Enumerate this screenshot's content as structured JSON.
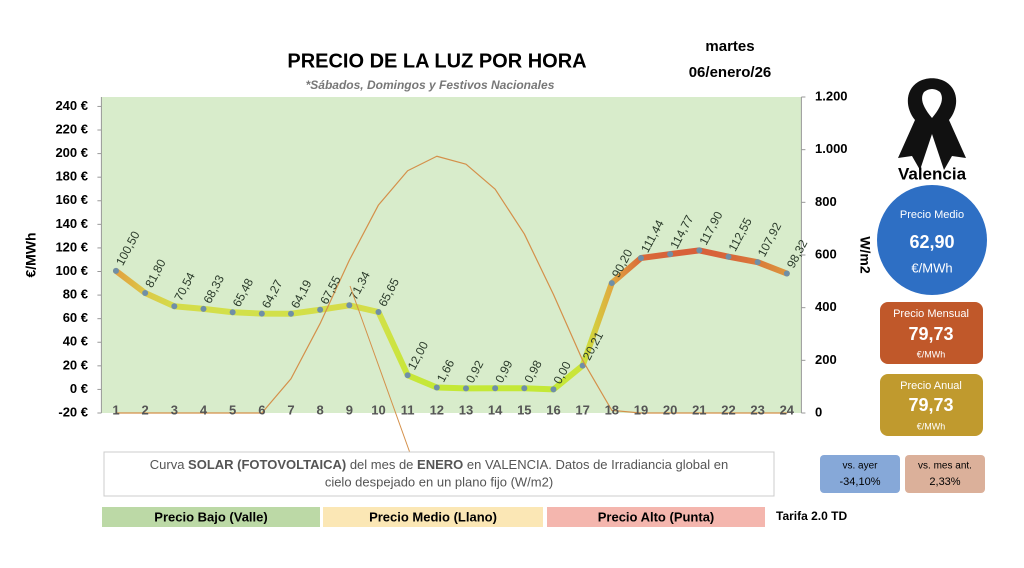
{
  "chart_data": {
    "type": "line",
    "title": "PRECIO DE LA LUZ POR HORA",
    "subtitle": "*Sábados, Domingos y Festivos Nacionales",
    "ylabel": "€/MWh",
    "y2label": "W/m2",
    "x": [
      1,
      2,
      3,
      4,
      5,
      6,
      7,
      8,
      9,
      10,
      11,
      12,
      13,
      14,
      15,
      16,
      17,
      18,
      19,
      20,
      21,
      22,
      23,
      24
    ],
    "xlim": [
      0.5,
      24.5
    ],
    "ylim": [
      -20,
      248
    ],
    "yticks": [
      {
        "value": -20,
        "label": "-20 €"
      },
      {
        "value": 0,
        "label": "0 €"
      },
      {
        "value": 20,
        "label": "20 €"
      },
      {
        "value": 40,
        "label": "40 €"
      },
      {
        "value": 60,
        "label": "60 €"
      },
      {
        "value": 80,
        "label": "80 €"
      },
      {
        "value": 100,
        "label": "100 €"
      },
      {
        "value": 120,
        "label": "120 €"
      },
      {
        "value": 140,
        "label": "140 €"
      },
      {
        "value": 160,
        "label": "160 €"
      },
      {
        "value": 180,
        "label": "180 €"
      },
      {
        "value": 200,
        "label": "200 €"
      },
      {
        "value": 220,
        "label": "220 €"
      },
      {
        "value": 240,
        "label": "240 €"
      }
    ],
    "y2lim": [
      0,
      1200
    ],
    "y2ticks": [
      0,
      200,
      400,
      600,
      800,
      {
        "value": 1000,
        "label": "1.000"
      },
      {
        "value": 1200,
        "label": "1.200"
      }
    ],
    "series": [
      {
        "name": "Precio",
        "marker_color": "#6f8fa8",
        "colors": [
          "#e2a03e",
          "#dcc848",
          "#d4dc4a",
          "#d4de4a",
          "#d2e04a",
          "#d2e04a",
          "#d2e04a",
          "#d4de4a",
          "#d6da48",
          "#d2e04a",
          "#c8e63a",
          "#c4e836",
          "#c4e836",
          "#c4e836",
          "#c4e836",
          "#c4e836",
          "#cce43c",
          "#e0a840",
          "#da6a38",
          "#d8623a",
          "#d8603a",
          "#d8663a",
          "#da7a3a",
          "#dc963e"
        ],
        "values": [
          100.5,
          81.8,
          70.54,
          68.33,
          65.48,
          64.27,
          64.19,
          67.55,
          71.34,
          65.65,
          12.0,
          1.66,
          0.92,
          0.99,
          0.98,
          0.0,
          20.21,
          90.2,
          111.44,
          114.77,
          117.9,
          112.55,
          107.92,
          98.32
        ],
        "value_labels": [
          "100,50",
          "81,80",
          "70,54",
          "68,33",
          "65,48",
          "64,27",
          "64,19",
          "67,55",
          "71,34",
          "65,65",
          "12,00",
          "1,66",
          "0,92",
          "0,99",
          "0,98",
          "0,00",
          "20,21",
          "90,20",
          "111,44",
          "114,77",
          "117,90",
          "112,55",
          "107,92",
          "98,32"
        ]
      },
      {
        "axis": "y2",
        "color": "#d4904a",
        "values": [
          0,
          0,
          0,
          0,
          0,
          0,
          130,
          340,
          580,
          790,
          920,
          975,
          945,
          850,
          680,
          450,
          200,
          10,
          0,
          0,
          0,
          0,
          0,
          0
        ]
      }
    ],
    "plot_color": "#d8eccb"
  },
  "date": {
    "weekday": "martes",
    "day": "06/enero/26"
  },
  "location": "Valencia",
  "stats": {
    "average": {
      "label": "Precio Medio",
      "value": "62,90",
      "unit": "€/MWh"
    },
    "monthly": {
      "label": "Precio Mensual",
      "value": "79,73",
      "unit": "€/MWh"
    },
    "yearly": {
      "label": "Precio Anual",
      "value": "79,73",
      "unit": "€/MWh"
    },
    "vs_yesterday": {
      "label": "vs. ayer",
      "value": "-34,10%"
    },
    "vs_last_month": {
      "label": "vs. mes ant.",
      "value": "2,33%"
    }
  },
  "note": {
    "line1": [
      "Curva ",
      "SOLAR (FOTOVOLTAICA)",
      " del mes de ",
      "ENERO",
      " en VALENCIA. Datos de Irradiancia global en"
    ],
    "line2": "cielo despejado en un plano fijo (W/m2)"
  },
  "legend": {
    "low": "Precio Bajo (Valle)",
    "mid": "Precio Medio (Llano)",
    "high": "Precio Alto (Punta)",
    "tariff": "Tarifa 2.0 TD"
  }
}
